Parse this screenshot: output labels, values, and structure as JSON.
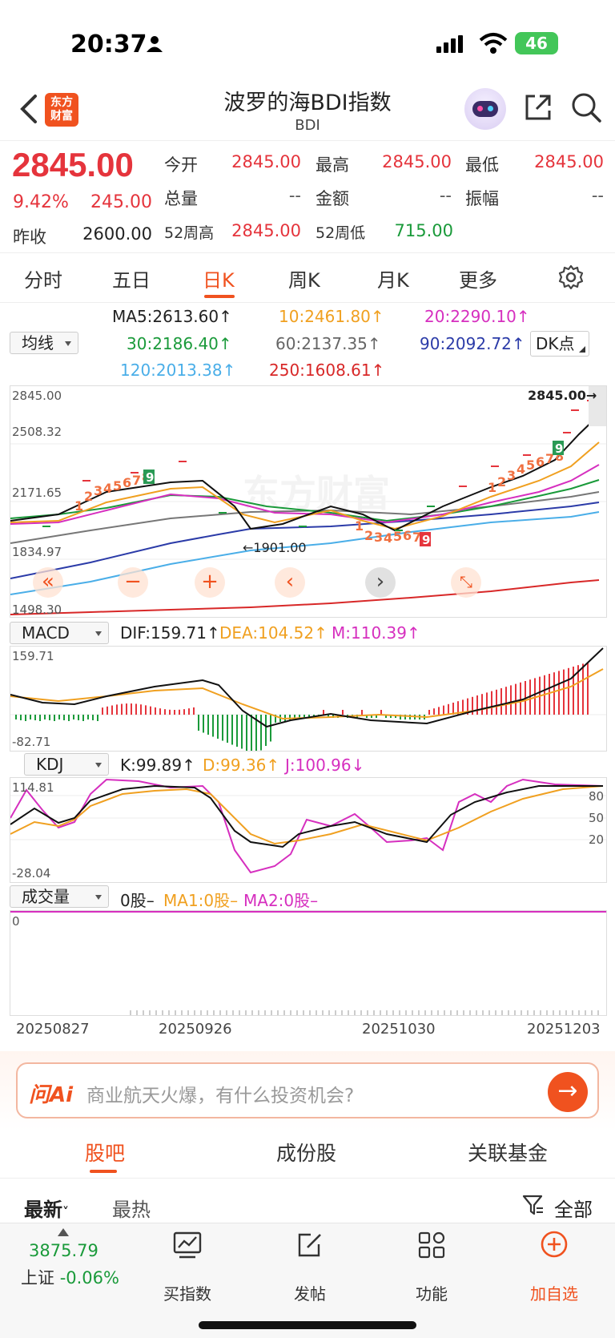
{
  "status": {
    "time": "20:37",
    "battery": "46"
  },
  "header": {
    "title": "波罗的海BDI指数",
    "subtitle": "BDI",
    "logo": "东方\n财富",
    "icons": [
      "back-icon",
      "logo",
      "robot-avatar",
      "share-icon",
      "search-icon"
    ]
  },
  "quote": {
    "price": "2845.00",
    "pct": "9.42%",
    "chg": "245.00",
    "prev_label": "昨收",
    "prev_value": "2600.00",
    "fields": [
      {
        "label": "今开",
        "value": "2845.00",
        "color": "red"
      },
      {
        "label": "最高",
        "value": "2845.00",
        "color": "red"
      },
      {
        "label": "最低",
        "value": "2845.00",
        "color": "red"
      },
      {
        "label": "总量",
        "value": "--",
        "color": "gray"
      },
      {
        "label": "金额",
        "value": "--",
        "color": "gray"
      },
      {
        "label": "振幅",
        "value": "--",
        "color": "gray"
      },
      {
        "label": "52周高",
        "value": "2845.00",
        "color": "red"
      },
      {
        "label": "52周低",
        "value": "715.00",
        "color": "green"
      }
    ]
  },
  "ktabs": [
    "分时",
    "五日",
    "日K",
    "周K",
    "月K",
    "更多"
  ],
  "ma": {
    "dropdown": "均线",
    "dk": "DK点",
    "items": [
      {
        "label": "MA5:2613.60↑",
        "color": "#222222"
      },
      {
        "label": "10:2461.80↑",
        "color": "#f0a020"
      },
      {
        "label": "20:2290.10↑",
        "color": "#d62fbf"
      },
      {
        "label": "30:2186.40↑",
        "color": "#1a9a3a"
      },
      {
        "label": "60:2137.35↑",
        "color": "#666666"
      },
      {
        "label": "90:2092.72↑",
        "color": "#2b3ba8"
      },
      {
        "label": "120:2013.38↑",
        "color": "#4aaee8"
      },
      {
        "label": "250:1608.61↑",
        "color": "#d82828"
      }
    ]
  },
  "main_chart": {
    "yticks": [
      "2845.00",
      "2508.32",
      "2171.65",
      "1834.97",
      "1498.30"
    ],
    "last_price": "2845.00",
    "low_marker": "1901.00",
    "watermark": "东方财富"
  },
  "macd": {
    "name": "MACD",
    "dif": "DIF:159.71↑",
    "dea": "DEA:104.52↑",
    "m": "M:110.39↑",
    "ymax": "159.71",
    "ymin": "-82.71"
  },
  "kdj": {
    "name": "KDJ",
    "k": "K:99.89↑",
    "d": "D:99.36↑",
    "j": "J:100.96↓",
    "ymax": "114.81",
    "ymin": "-28.04",
    "levels": [
      "80",
      "50",
      "20"
    ]
  },
  "vol": {
    "name": "成交量",
    "v": "0股–",
    "ma1": "MA1:0股–",
    "ma2": "MA2:0股–",
    "zero": "0"
  },
  "dates": [
    "20250827",
    "20250926",
    "20251030",
    "20251203"
  ],
  "ai": {
    "brand": "问Ai",
    "placeholder": "商业航天火爆，有什么投资机会?"
  },
  "section_tabs": [
    "股吧",
    "成份股",
    "关联基金"
  ],
  "filter": {
    "newest": "最新",
    "hot": "最热",
    "all": "全部"
  },
  "bottom": {
    "index_value": "3875.79",
    "index_name": "上证",
    "index_chg": "-0.06%",
    "nav": [
      "买指数",
      "发帖",
      "功能",
      "加自选"
    ]
  }
}
